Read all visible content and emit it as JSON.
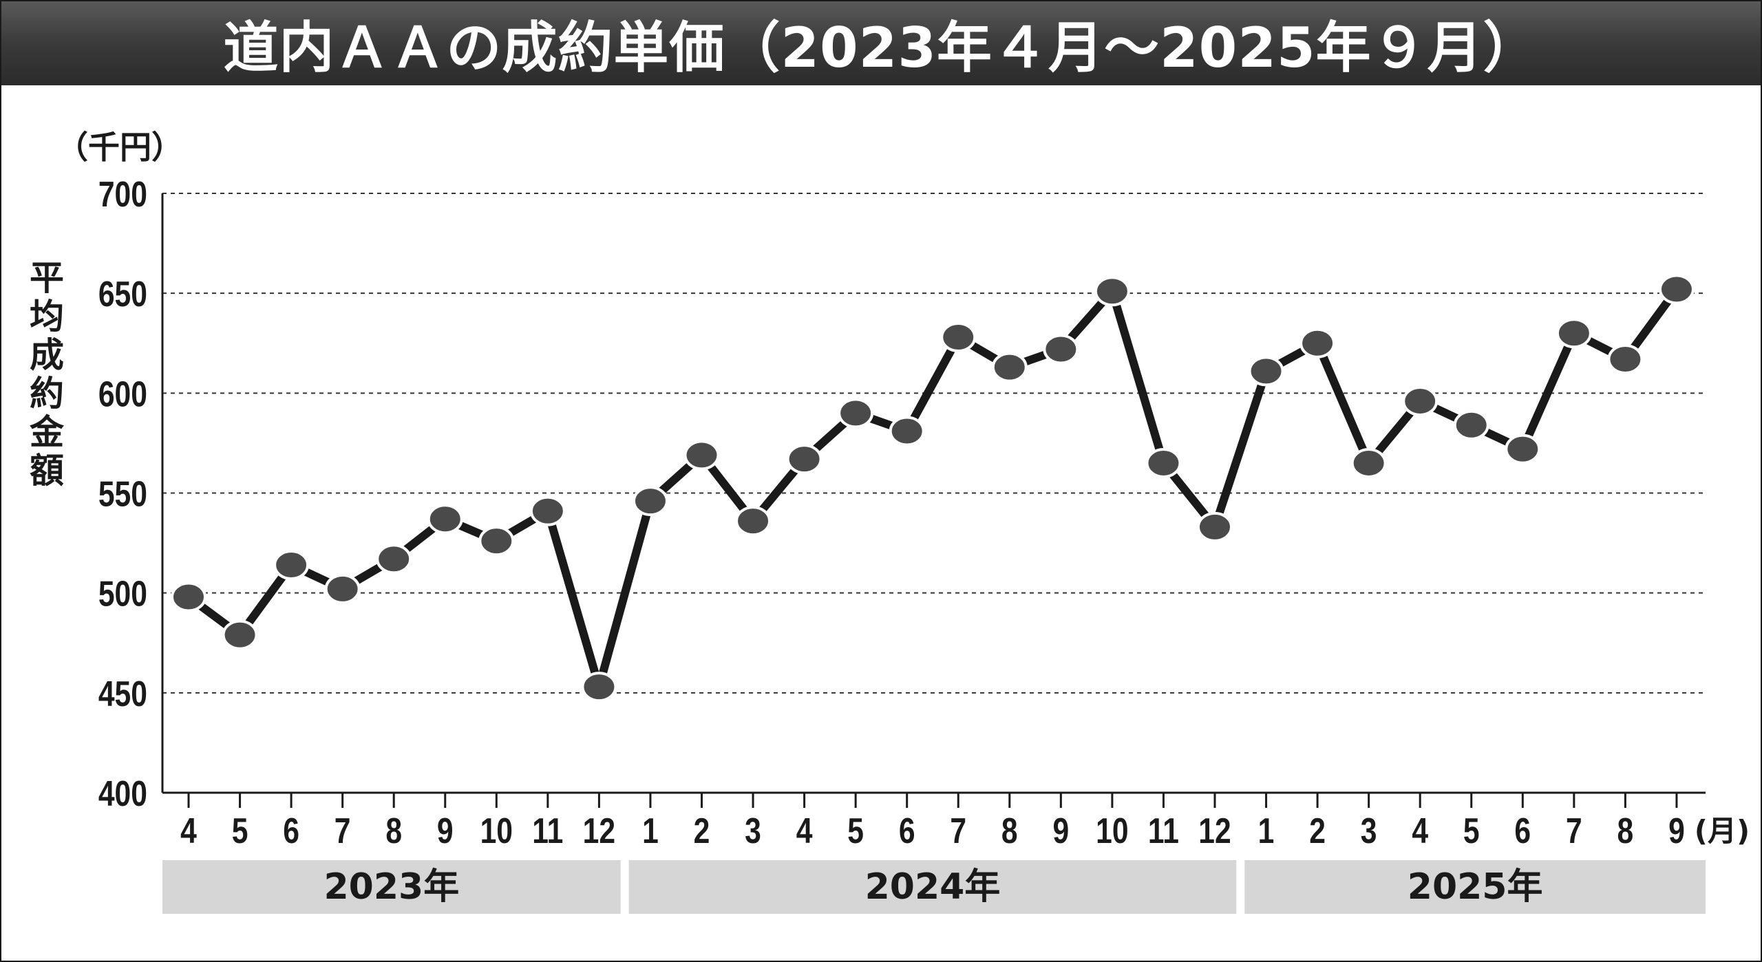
{
  "chart_data": {
    "type": "line",
    "title": "道内ＡＡの成約単価（2023年４月～2025年９月）",
    "ylabel": "平均成約金額",
    "y_unit": "（千円）",
    "x_unit": "(月)",
    "ylim": [
      400,
      700
    ],
    "yticks": [
      "700",
      "650",
      "600",
      "550",
      "500",
      "450",
      "400"
    ],
    "grid": "dashed horizontal",
    "categories": [
      "4",
      "5",
      "6",
      "7",
      "8",
      "9",
      "10",
      "11",
      "12",
      "1",
      "2",
      "3",
      "4",
      "5",
      "6",
      "7",
      "8",
      "9",
      "10",
      "11",
      "12",
      "1",
      "2",
      "3",
      "4",
      "5",
      "6",
      "7",
      "8",
      "9"
    ],
    "series": [
      {
        "values": [
          498,
          479,
          514,
          502,
          517,
          537,
          526,
          541,
          453,
          546,
          569,
          536,
          567,
          590,
          581,
          628,
          613,
          622,
          651,
          565,
          533,
          611,
          625,
          565,
          596,
          584,
          572,
          630,
          617,
          652
        ]
      }
    ],
    "year_groups": [
      {
        "label": "2023年",
        "start": 0,
        "end": 8
      },
      {
        "label": "2024年",
        "start": 9,
        "end": 20
      },
      {
        "label": "2025年",
        "start": 21,
        "end": 29
      }
    ],
    "colors": {
      "line": "#1a1a1a",
      "marker_fill": "#4a4a4a",
      "grid": "#333333",
      "year_band": "#d6d6d6",
      "title_bg": "#3a3a3a"
    }
  }
}
